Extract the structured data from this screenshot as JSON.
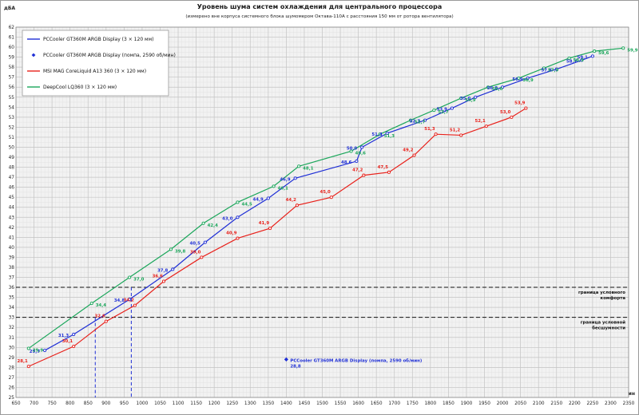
{
  "chart_data": {
    "type": "line",
    "title": "Уровень шума систем охлаждения для центрального процессора",
    "subtitle": "(измерено вне корпуса системного блока шумомером Октава-110А с расстояния 150 мм от ротора вентилятора)",
    "xlabel": "об/мин",
    "ylabel": "дБА",
    "xlim": [
      650,
      2350
    ],
    "ylim": [
      25,
      62
    ],
    "x_ticks": [
      650,
      700,
      750,
      800,
      850,
      900,
      950,
      1000,
      1050,
      1100,
      1150,
      1200,
      1250,
      1300,
      1350,
      1400,
      1450,
      1500,
      1550,
      1600,
      1650,
      1700,
      1750,
      1800,
      1850,
      1900,
      1950,
      2000,
      2050,
      2100,
      2150,
      2200,
      2250,
      2300,
      2350
    ],
    "y_ticks": [
      25,
      26,
      27,
      28,
      29,
      30,
      31,
      32,
      33,
      34,
      35,
      36,
      37,
      38,
      39,
      40,
      41,
      42,
      43,
      44,
      45,
      46,
      47,
      48,
      49,
      50,
      51,
      52,
      53,
      54,
      55,
      56,
      57,
      58,
      59,
      60,
      61,
      62
    ],
    "grid": true,
    "legend_position": "top-left",
    "series": [
      {
        "name": "PCCooler GT360M ARGB Display (3 × 120 мм)",
        "color": "#1f2fd6",
        "labels": [
          "29,7",
          "31,3",
          "34,8",
          "37,8",
          "40,5",
          "43,0",
          "44,9",
          "46,9",
          "48,6",
          "50,0",
          "51,4",
          "52,7",
          "53,9",
          "55,0",
          "56,0",
          "56,9",
          "57,8",
          "58,7",
          "59,1"
        ],
        "points": [
          [
            730,
            29.7
          ],
          [
            810,
            31.3
          ],
          [
            965,
            34.8
          ],
          [
            1085,
            37.8
          ],
          [
            1175,
            40.5
          ],
          [
            1265,
            43.0
          ],
          [
            1350,
            44.9
          ],
          [
            1425,
            46.9
          ],
          [
            1595,
            48.6
          ],
          [
            1610,
            50.0
          ],
          [
            1680,
            51.4
          ],
          [
            1785,
            52.7
          ],
          [
            1860,
            53.9
          ],
          [
            1925,
            55.0
          ],
          [
            2000,
            56.0
          ],
          [
            2070,
            56.9
          ],
          [
            2150,
            57.8
          ],
          [
            2220,
            58.7
          ],
          [
            2250,
            59.1
          ]
        ]
      },
      {
        "name": "PCCooler GT360M ARGB Display (помпа, 2590 об/мин)",
        "color": "#1f2fd6",
        "labels": [
          "28,8"
        ],
        "points": [
          [
            1400,
            28.8
          ]
        ]
      },
      {
        "name": "MSI MAG CoreLiquid A13 360 (3 × 120 мм)",
        "color": "#e8211b",
        "labels": [
          "28,1",
          "30,1",
          "32,6",
          "34,2",
          "36,6",
          "39,0",
          "40,9",
          "41,9",
          "44,2",
          "45,0",
          "47,2",
          "47,5",
          "49,2",
          "51,3",
          "51,2",
          "52,1",
          "53,0",
          "53,9"
        ],
        "points": [
          [
            685,
            28.1
          ],
          [
            810,
            30.1
          ],
          [
            900,
            32.6
          ],
          [
            980,
            34.2
          ],
          [
            1060,
            36.6
          ],
          [
            1165,
            39.0
          ],
          [
            1265,
            40.9
          ],
          [
            1355,
            41.9
          ],
          [
            1430,
            44.2
          ],
          [
            1525,
            45.0
          ],
          [
            1615,
            47.2
          ],
          [
            1685,
            47.5
          ],
          [
            1755,
            49.2
          ],
          [
            1815,
            51.3
          ],
          [
            1885,
            51.2
          ],
          [
            1955,
            52.1
          ],
          [
            2025,
            53.0
          ],
          [
            2065,
            53.9
          ]
        ]
      },
      {
        "name": "DeepCool LQ360 (3 × 120 мм)",
        "color": "#1aa65a",
        "labels": [
          "29,9",
          "34,4",
          "37,0",
          "39,8",
          "42,4",
          "44,5",
          "46,1",
          "48,1",
          "49,6",
          "51,3",
          "52,7",
          "53,7",
          "54,9",
          "56,0",
          "56,9",
          "57,9",
          "58,9",
          "59,6",
          "59,9"
        ],
        "points": [
          [
            685,
            29.9
          ],
          [
            860,
            34.4
          ],
          [
            965,
            37.0
          ],
          [
            1080,
            39.8
          ],
          [
            1170,
            42.4
          ],
          [
            1265,
            44.5
          ],
          [
            1365,
            46.1
          ],
          [
            1435,
            48.1
          ],
          [
            1580,
            49.6
          ],
          [
            1660,
            51.3
          ],
          [
            1745,
            52.7
          ],
          [
            1810,
            53.7
          ],
          [
            1885,
            54.9
          ],
          [
            1960,
            56.0
          ],
          [
            2045,
            56.9
          ],
          [
            2115,
            57.9
          ],
          [
            2185,
            58.9
          ],
          [
            2255,
            59.6
          ],
          [
            2335,
            59.9
          ]
        ]
      }
    ],
    "ref_lines": [
      {
        "y": 36,
        "label1": "граница условного",
        "label2": "комфорта"
      },
      {
        "y": 33,
        "label1": "граница условной",
        "label2": "бесшумности"
      }
    ],
    "drop_lines": [
      {
        "x": 870,
        "y": 33
      },
      {
        "x": 970,
        "y": 36
      }
    ],
    "annotation": {
      "text": "PCCooler GT360M ARGB Display (помпа, 2590 об/мин)",
      "x": 1400,
      "y": 28.8
    }
  }
}
